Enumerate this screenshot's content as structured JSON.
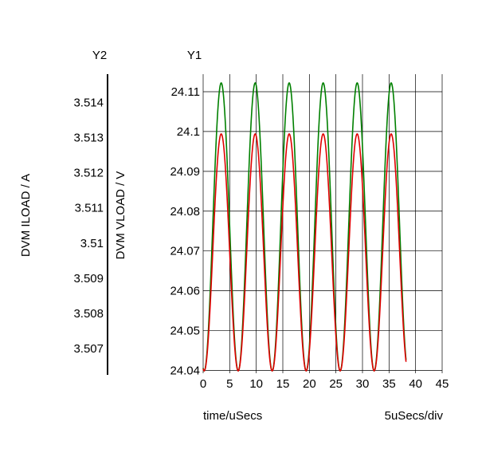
{
  "chart_data": {
    "type": "line",
    "y1_axis": {
      "name": "Y1",
      "label": "DVM VLOAD / V",
      "range": [
        24.04,
        24.11
      ],
      "ticks": [
        "24.11",
        "24.1",
        "24.09",
        "24.08",
        "24.07",
        "24.06",
        "24.05",
        "24.04"
      ]
    },
    "y2_axis": {
      "name": "Y2",
      "label": "DVM ILOAD / A",
      "range": [
        3.5063,
        3.5148
      ],
      "ticks": [
        "3.514",
        "3.513",
        "3.512",
        "3.511",
        "3.51",
        "3.509",
        "3.508",
        "3.507"
      ]
    },
    "x_axis": {
      "label": "time/uSecs",
      "scale_label": "5uSecs/div",
      "range": [
        0,
        45
      ],
      "ticks": [
        "0",
        "5",
        "10",
        "15",
        "20",
        "25",
        "30",
        "35",
        "40",
        "45"
      ]
    },
    "grid": true,
    "series": [
      {
        "color": "#008000",
        "waveform": "sine",
        "axis": "Y1",
        "period": 6.4,
        "phase_peak": 3.4,
        "max": 24.1122,
        "min": 24.0399,
        "x_range": [
          0,
          38.2
        ]
      },
      {
        "color": "#e00000",
        "waveform": "sine",
        "axis": "Y1",
        "period": 6.4,
        "phase_peak": 3.4,
        "max": 24.0994,
        "min": 24.0399,
        "x_range": [
          0,
          38.2
        ]
      }
    ]
  }
}
